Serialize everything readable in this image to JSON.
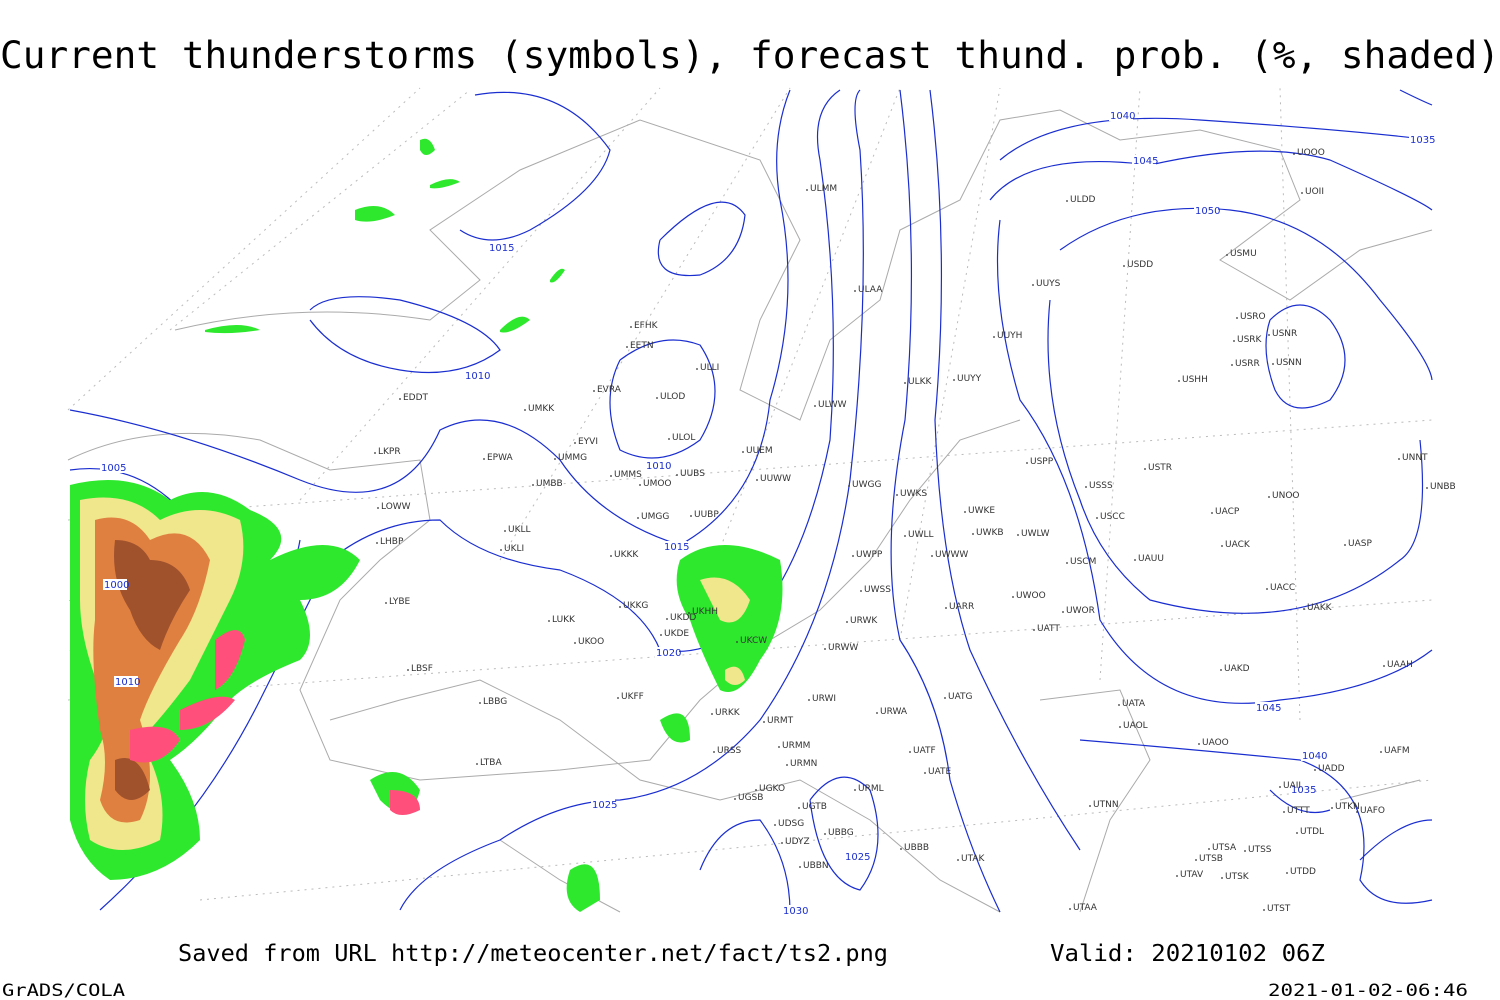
{
  "header": {
    "title": "Current thunderstorms (symbols), forecast thund. prob. (%, shaded)"
  },
  "isobar_labels": [
    "1040",
    "1035",
    "1045",
    "1050",
    "1015",
    "1010",
    "1010",
    "1005",
    "1000",
    "1015",
    "1020",
    "1010",
    "1045",
    "1040",
    "1035",
    "1025",
    "1025",
    "1030"
  ],
  "stations": [
    "ULMM",
    "ULDD",
    "UOII",
    "UOOO",
    "USDD",
    "USMU",
    "ULAA",
    "UUYS",
    "USRO",
    "USRK",
    "USNR",
    "USRR",
    "USNN",
    "UUYH",
    "EFHK",
    "EETN",
    "ULLI",
    "USHH",
    "ULKK",
    "UUYY",
    "EVRA",
    "ULOD",
    "EDDT",
    "UMKK",
    "ULWW",
    "ULOL",
    "EYVI",
    "UUEM",
    "LKPR",
    "EPWA",
    "UMMG",
    "USPP",
    "USTR",
    "UNNT",
    "UMMS",
    "UMOO",
    "UUBS",
    "UUWW",
    "UMBB",
    "UWGG",
    "UWKS",
    "USSS",
    "UNOO",
    "UNBB",
    "LOWW",
    "UWKE",
    "USCC",
    "UACP",
    "UMGG",
    "UUBP",
    "LHBP",
    "UKLL",
    "UKLI",
    "UWKB",
    "UWLW",
    "UWLL",
    "UACK",
    "UASP",
    "UKKK",
    "UWPP",
    "UWWW",
    "USCM",
    "UAUU",
    "LYBE",
    "UWSS",
    "UACC",
    "UKHH",
    "UKKG",
    "UKDD",
    "UARR",
    "UWOO",
    "UWOR",
    "UAKK",
    "LUKK",
    "UKDE",
    "UKCW",
    "URWK",
    "UATT",
    "UKOO",
    "URWW",
    "LBSF",
    "UAKD",
    "UAAH",
    "UKFF",
    "URWI",
    "UATG",
    "LBBG",
    "URKK",
    "URWA",
    "UATA",
    "URMT",
    "UAOL",
    "URMM",
    "UATF",
    "UAOO",
    "UAFM",
    "URSS",
    "URMN",
    "UADD",
    "LTBA",
    "UATE",
    "UAII",
    "URML",
    "UGKO",
    "UGSB",
    "UGTB",
    "UTNN",
    "UTTT",
    "UTKN",
    "UAFO",
    "UDSG",
    "UBBG",
    "UTDL",
    "UBBB",
    "UTSA",
    "UTSS",
    "UDYZ",
    "UTAK",
    "UTSB",
    "UBBN",
    "UTAV",
    "UTSK",
    "UTDD",
    "UTAA",
    "UTST"
  ],
  "footer": {
    "source": "Saved from URL http://meteocenter.net/fact/ts2.png",
    "valid": "Valid: 20210102 06Z",
    "software": "GrADS/COLA",
    "timestamp": "2021-01-02-06:46"
  }
}
